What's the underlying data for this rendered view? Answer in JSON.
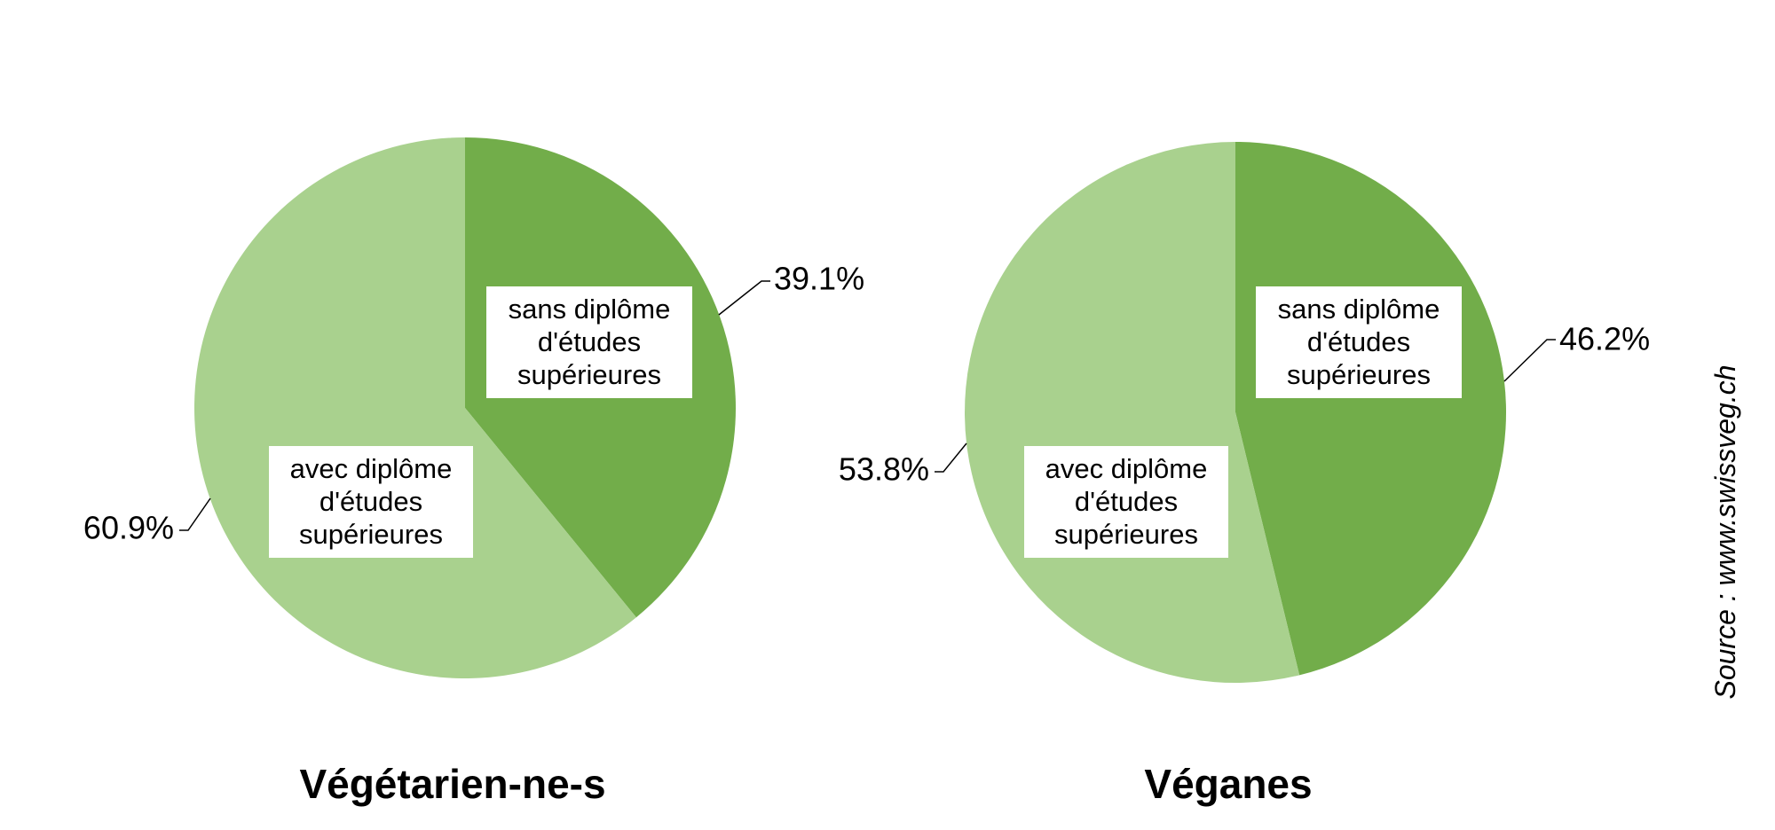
{
  "source": "Source : www.swissveg.ch",
  "colors": {
    "sans": "#72ad4a",
    "avec": "#a9d18e"
  },
  "chart_data": [
    {
      "type": "pie",
      "title": "Végétarien-ne-s",
      "slices": [
        {
          "label": "sans diplôme d'études supérieures",
          "label_lines": [
            "sans diplôme",
            "d'études",
            "supérieures"
          ],
          "value": 39.1,
          "value_label": "39.1%"
        },
        {
          "label": "avec diplôme d'études supérieures",
          "label_lines": [
            "avec diplôme",
            "d'études",
            "supérieures"
          ],
          "value": 60.9,
          "value_label": "60.9%"
        }
      ]
    },
    {
      "type": "pie",
      "title": "Véganes",
      "slices": [
        {
          "label": "sans diplôme d'études supérieures",
          "label_lines": [
            "sans diplôme",
            "d'études",
            "supérieures"
          ],
          "value": 46.2,
          "value_label": "46.2%"
        },
        {
          "label": "avec diplôme d'études supérieures",
          "label_lines": [
            "avec diplôme",
            "d'études",
            "supérieures"
          ],
          "value": 53.8,
          "value_label": "53.8%"
        }
      ]
    }
  ]
}
